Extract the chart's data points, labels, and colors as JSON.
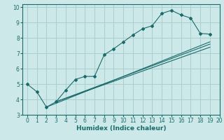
{
  "xlabel": "Humidex (Indice chaleur)",
  "bg_color": "#cde8e8",
  "grid_color": "#aacece",
  "line_color": "#1a6b6b",
  "xlim": [
    -0.5,
    20
  ],
  "ylim": [
    3,
    10.2
  ],
  "xticks": [
    0,
    1,
    2,
    3,
    4,
    5,
    6,
    7,
    8,
    9,
    10,
    11,
    12,
    13,
    14,
    15,
    16,
    17,
    18,
    19,
    20
  ],
  "yticks": [
    3,
    4,
    5,
    6,
    7,
    8,
    9,
    10
  ],
  "curve1_x": [
    0,
    1,
    2,
    3,
    4,
    5,
    6,
    7,
    8,
    9,
    10,
    11,
    12,
    13,
    14,
    15,
    16,
    17,
    18,
    19
  ],
  "curve1_y": [
    5.0,
    4.5,
    3.5,
    3.85,
    4.6,
    5.3,
    5.5,
    5.5,
    6.9,
    7.3,
    7.75,
    8.2,
    8.6,
    8.8,
    9.6,
    9.8,
    9.5,
    9.3,
    8.3,
    8.25
  ],
  "line2_x": [
    2,
    19
  ],
  "line2_y": [
    3.5,
    7.75
  ],
  "line3_x": [
    3,
    19
  ],
  "line3_y": [
    3.85,
    7.6
  ],
  "line4_x": [
    3,
    19
  ],
  "line4_y": [
    3.85,
    7.4
  ]
}
